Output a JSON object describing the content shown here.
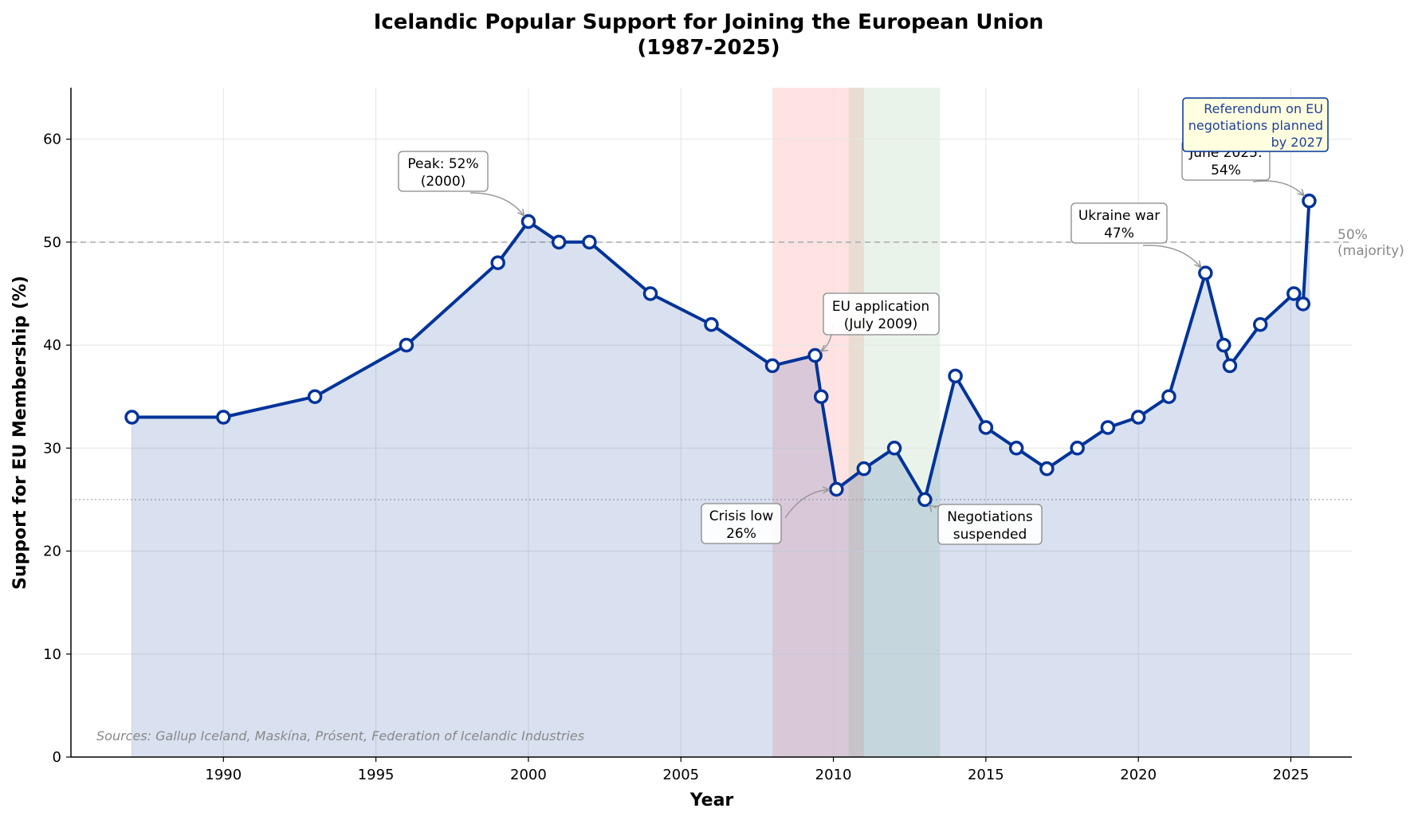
{
  "chart_data": {
    "type": "line",
    "title_line1": "Icelandic Popular Support for Joining the European Union",
    "title_line2": "(1987-2025)",
    "xlabel": "Year",
    "ylabel": "Support for EU Membership (%)",
    "xlim": [
      1985,
      2027
    ],
    "ylim": [
      0,
      65
    ],
    "x_ticks": [
      1990,
      1995,
      2000,
      2005,
      2010,
      2015,
      2020,
      2025
    ],
    "y_ticks": [
      0,
      10,
      20,
      30,
      40,
      50,
      60
    ],
    "grid": true,
    "series": [
      {
        "name": "Support for EU Membership",
        "color": "#003399",
        "x": [
          1987,
          1990,
          1993,
          1996,
          1999,
          2000,
          2001,
          2002,
          2004,
          2006,
          2008,
          2009.4,
          2009.6,
          2010.1,
          2011,
          2012,
          2013,
          2014,
          2015,
          2016,
          2017,
          2018,
          2019,
          2020,
          2021,
          2022.2,
          2022.8,
          2023,
          2024,
          2025.1,
          2025.4,
          2025.6
        ],
        "values": [
          33,
          33,
          35,
          40,
          48,
          52,
          50,
          50,
          45,
          42,
          38,
          39,
          35,
          26,
          28,
          30,
          25,
          37,
          32,
          30,
          28,
          30,
          32,
          33,
          35,
          47,
          40,
          38,
          42,
          45,
          44,
          54
        ]
      }
    ],
    "reference_lines": [
      {
        "y": 50,
        "label_line1": "50%",
        "label_line2": "(majority)",
        "color": "#aaaaaa",
        "style": "dashed"
      },
      {
        "y": 25,
        "color": "#bbbbbb",
        "style": "dotted"
      }
    ],
    "shaded_periods": [
      {
        "x0": 2008,
        "x1": 2011,
        "color": "#ff9999",
        "opacity": 0.28
      },
      {
        "x0": 2010.5,
        "x1": 2013.5,
        "color": "#8fc48f",
        "opacity": 0.2
      }
    ],
    "annotations": [
      {
        "name": "peak",
        "lines": [
          "Peak: 52%",
          "(2000)"
        ],
        "point_x": 2000,
        "point_y": 52
      },
      {
        "name": "eu-application",
        "lines": [
          "EU application",
          "(July 2009)"
        ],
        "point_x": 2009.4,
        "point_y": 39
      },
      {
        "name": "crisis-low",
        "lines": [
          "Crisis low",
          "26%"
        ],
        "point_x": 2010.1,
        "point_y": 26
      },
      {
        "name": "negotiations-suspended",
        "lines": [
          "Negotiations",
          "suspended"
        ],
        "point_x": 2013,
        "point_y": 25
      },
      {
        "name": "ukraine-war",
        "lines": [
          "Ukraine war",
          "47%"
        ],
        "point_x": 2022.2,
        "point_y": 47
      },
      {
        "name": "june-2025",
        "lines": [
          "June 2025:",
          "54%"
        ],
        "point_x": 2025.6,
        "point_y": 54
      }
    ],
    "note": {
      "lines": [
        "Referendum on EU",
        "negotiations planned",
        "by 2027"
      ],
      "color": "#003399",
      "bg": "#ffffe0"
    },
    "source": "Sources: Gallup Iceland, Maskína, Prósent, Federation of Icelandic Industries"
  }
}
